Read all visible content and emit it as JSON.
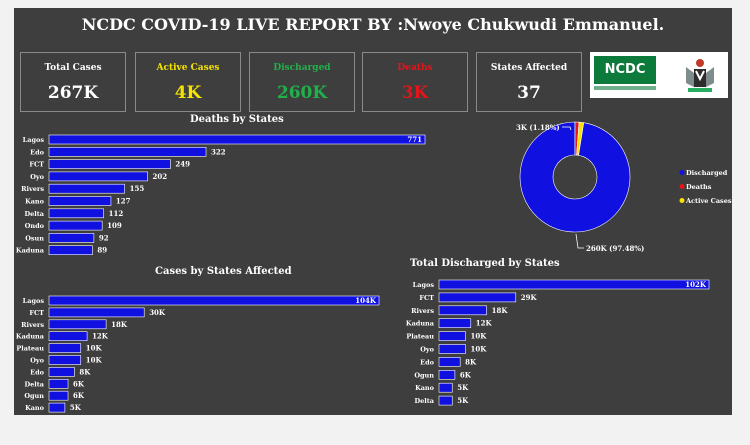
{
  "title": "NCDC COVID-19 LIVE REPORT BY :Nwoye Chukwudi Emmanuel.",
  "kpis": [
    {
      "label": "Total Cases",
      "value": "267K",
      "label_color": "#ffffff",
      "value_color": "#ffffff"
    },
    {
      "label": "Active Cases",
      "value": "4K",
      "label_color": "#f5e400",
      "value_color": "#f5e400"
    },
    {
      "label": "Discharged",
      "value": "260K",
      "label_color": "#21b14a",
      "value_color": "#21b14a"
    },
    {
      "label": "Deaths",
      "value": "3K",
      "label_color": "#e4141b",
      "value_color": "#e4141b"
    },
    {
      "label": "States Affected",
      "value": "37",
      "label_color": "#ffffff",
      "value_color": "#ffffff"
    }
  ],
  "logo": {
    "text": "NCDC"
  },
  "colors": {
    "bar": "#1010e0",
    "bar_edge": "#0a0ab0",
    "text": "#ffffff",
    "panel": "#3e3e3e"
  },
  "chart_data": [
    {
      "id": "deaths",
      "type": "bar",
      "orientation": "horizontal",
      "title": "Deaths by States",
      "categories": [
        "Lagos",
        "Edo",
        "FCT",
        "Oyo",
        "Rivers",
        "Kano",
        "Delta",
        "Ondo",
        "Osun",
        "Kaduna"
      ],
      "values": [
        771,
        322,
        249,
        202,
        155,
        127,
        112,
        109,
        92,
        89
      ],
      "labels": [
        "771",
        "322",
        "249",
        "202",
        "155",
        "127",
        "112",
        "109",
        "92",
        "89"
      ]
    },
    {
      "id": "cases",
      "type": "bar",
      "orientation": "horizontal",
      "title": "Cases by States Affected",
      "categories": [
        "Lagos",
        "FCT",
        "Rivers",
        "Kaduna",
        "Plateau",
        "Oyo",
        "Edo",
        "Delta",
        "Ogun",
        "Kano"
      ],
      "values": [
        104,
        30,
        18,
        12,
        10,
        10,
        8,
        6,
        6,
        5
      ],
      "labels": [
        "104K",
        "30K",
        "18K",
        "12K",
        "10K",
        "10K",
        "8K",
        "6K",
        "6K",
        "5K"
      ]
    },
    {
      "id": "discharged",
      "type": "bar",
      "orientation": "horizontal",
      "title": "Total Discharged by States",
      "categories": [
        "Lagos",
        "FCT",
        "Rivers",
        "Kaduna",
        "Plateau",
        "Oyo",
        "Edo",
        "Ogun",
        "Kano",
        "Delta"
      ],
      "values": [
        102,
        29,
        18,
        12,
        10,
        10,
        8,
        6,
        5,
        5
      ],
      "labels": [
        "102K",
        "29K",
        "18K",
        "12K",
        "10K",
        "10K",
        "8K",
        "6K",
        "5K",
        "5K"
      ]
    },
    {
      "id": "donut",
      "type": "pie",
      "slices": [
        {
          "name": "Discharged",
          "value": 97.48,
          "label": "260K (97.48%)",
          "color": "#1010e0"
        },
        {
          "name": "Deaths",
          "value": 1.18,
          "label": "3K (1.18%)",
          "color": "#e4141b"
        },
        {
          "name": "Active Cases",
          "value": 1.34,
          "label": "",
          "color": "#f5e400"
        }
      ],
      "legend": "right"
    }
  ]
}
